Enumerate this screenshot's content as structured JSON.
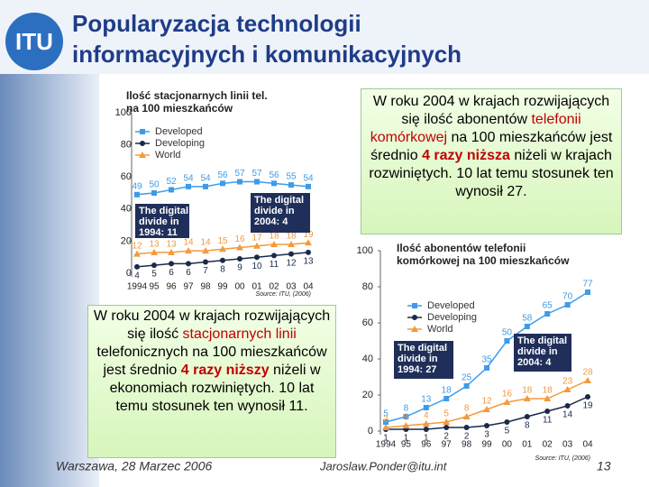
{
  "logo": "ITU",
  "title": [
    "Popularyzacja technologii",
    "informacyjnych i komunikacyjnych"
  ],
  "note_mobile": [
    "W roku 2004 w krajach rozwijających się ilość abonentów ",
    "telefonii komórkowej",
    " na 100 mieszkańców jest średnio ",
    "4 razy niższa",
    " niżeli w krajach rozwiniętych. 10 lat temu stosunek ten wynosił 27."
  ],
  "note_fixed": [
    "W roku 2004 w krajach rozwijających się ilość ",
    "stacjonarnych linii",
    " telefonicznych na 100 mieszkańców jest średnio ",
    "4 razy niższy",
    " niżeli w ekonomiach rozwiniętych. 10 lat temu stosunek ten wynosił 11."
  ],
  "footer": {
    "place_date": "Warszawa, 28 Marzec 2006",
    "email": "Jaroslaw.Ponder@itu.int",
    "page": "13"
  },
  "chart_data": [
    {
      "type": "line",
      "title": [
        "Ilość stacjonarnych linii tel.",
        "na 100 mieszkańców"
      ],
      "x": [
        "1994",
        "95",
        "96",
        "97",
        "98",
        "99",
        "00",
        "01",
        "02",
        "03",
        "04"
      ],
      "series": [
        {
          "name": "Developed",
          "color": "#3d9be9",
          "marker": "square",
          "values": [
            49,
            50,
            52,
            54,
            54,
            56,
            57,
            57,
            56,
            55,
            54
          ]
        },
        {
          "name": "Developing",
          "color": "#1b2a4a",
          "marker": "circle",
          "values": [
            4,
            5,
            6,
            6,
            7,
            8,
            9,
            10,
            11,
            12,
            13
          ]
        },
        {
          "name": "World",
          "color": "#f39a3c",
          "marker": "triangle",
          "values": [
            12,
            13,
            13,
            14,
            14,
            15,
            16,
            17,
            18,
            18,
            19
          ]
        }
      ],
      "ylim": [
        0,
        100
      ],
      "yticks": [
        0,
        20,
        40,
        60,
        80,
        100
      ],
      "legend": "upper left",
      "annotations": [
        [
          "The digital",
          "divide in",
          "1994: 11"
        ],
        [
          "The digital",
          "divide in",
          "2004: 4"
        ]
      ],
      "source": "Source: ITU, (2006)"
    },
    {
      "type": "line",
      "title": [
        "Ilość abonentów telefonii",
        "komórkowej na 100 mieszkańców"
      ],
      "x": [
        "1994",
        "95",
        "96",
        "97",
        "98",
        "99",
        "00",
        "01",
        "02",
        "03",
        "04"
      ],
      "series": [
        {
          "name": "Developed",
          "color": "#3d9be9",
          "marker": "square",
          "values": [
            5,
            8,
            13,
            18,
            25,
            35,
            50,
            58,
            65,
            70,
            77
          ]
        },
        {
          "name": "Developing",
          "color": "#1b2a4a",
          "marker": "circle",
          "values": [
            1,
            1,
            1,
            2,
            2,
            3,
            5,
            8,
            11,
            14,
            19
          ]
        },
        {
          "name": "World",
          "color": "#f39a3c",
          "marker": "triangle",
          "values": [
            2,
            3,
            4,
            5,
            8,
            12,
            16,
            18,
            18,
            23,
            28
          ]
        }
      ],
      "ylim": [
        0,
        100
      ],
      "yticks": [
        0,
        20,
        40,
        60,
        80,
        100
      ],
      "legend": "upper left",
      "annotations": [
        [
          "The digital",
          "divide in",
          "1994: 27"
        ],
        [
          "The digital",
          "divide in",
          "2004: 4"
        ]
      ],
      "source": "Source: ITU, (2006)"
    }
  ]
}
